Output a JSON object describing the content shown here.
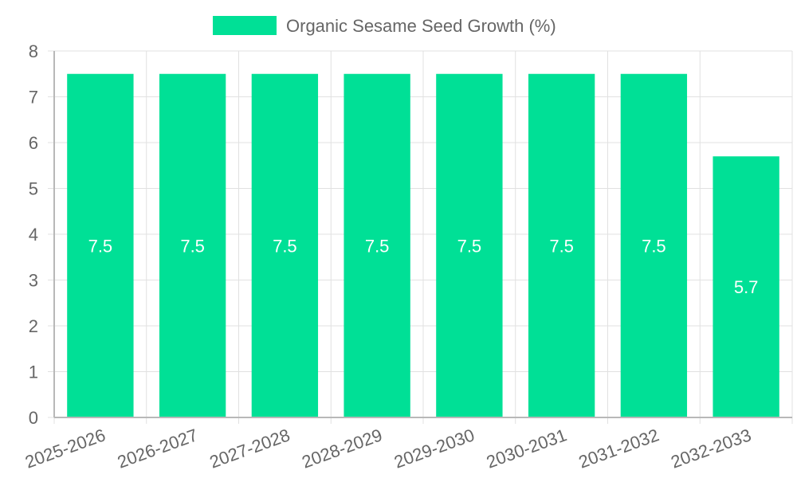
{
  "chart_data": {
    "type": "bar",
    "title": "",
    "xlabel": "",
    "ylabel": "",
    "categories": [
      "2025-2026",
      "2026-2027",
      "2027-2028",
      "2028-2029",
      "2029-2030",
      "2030-2031",
      "2031-2032",
      "2032-2033"
    ],
    "series": [
      {
        "name": "Organic Sesame Seed Growth (%)",
        "values": [
          7.5,
          7.5,
          7.5,
          7.5,
          7.5,
          7.5,
          7.5,
          5.7
        ],
        "color": "#00e096"
      }
    ],
    "ylim": [
      0,
      8
    ],
    "yticks": [
      0,
      1,
      2,
      3,
      4,
      5,
      6,
      7,
      8
    ],
    "grid": true,
    "legend_position": "top-center",
    "data_labels": [
      "7.5",
      "7.5",
      "7.5",
      "7.5",
      "7.5",
      "7.5",
      "7.5",
      "5.7"
    ]
  }
}
